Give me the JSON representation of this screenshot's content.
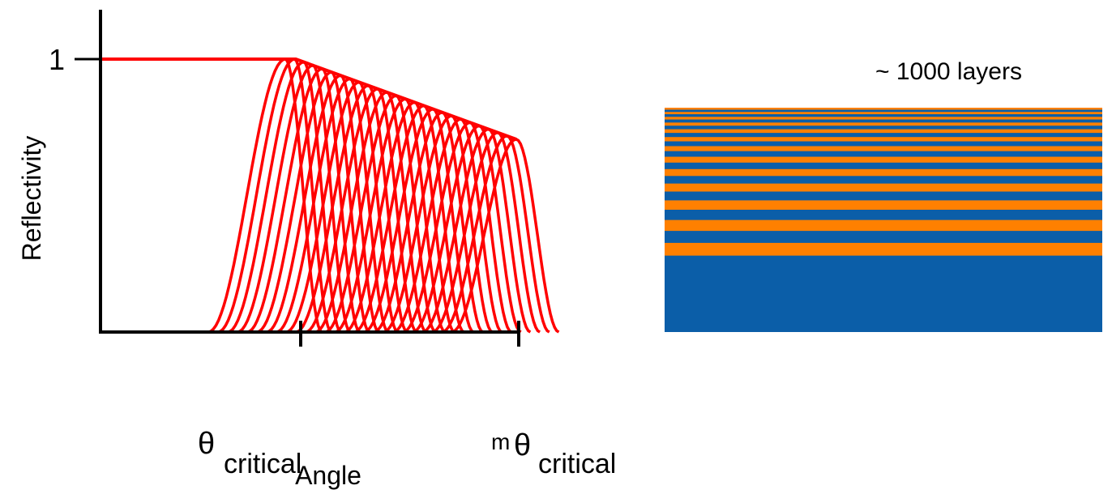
{
  "axes": {
    "y_tick": "1",
    "y_label": "Reflectivity",
    "x_label": "Angle",
    "x_ticks": [
      {
        "symbol": "θ",
        "subscript": "critical"
      },
      {
        "prefix": "m",
        "symbol": "θ",
        "subscript": "critical"
      }
    ]
  },
  "stack": {
    "label": "~ 1000 layers"
  }
}
